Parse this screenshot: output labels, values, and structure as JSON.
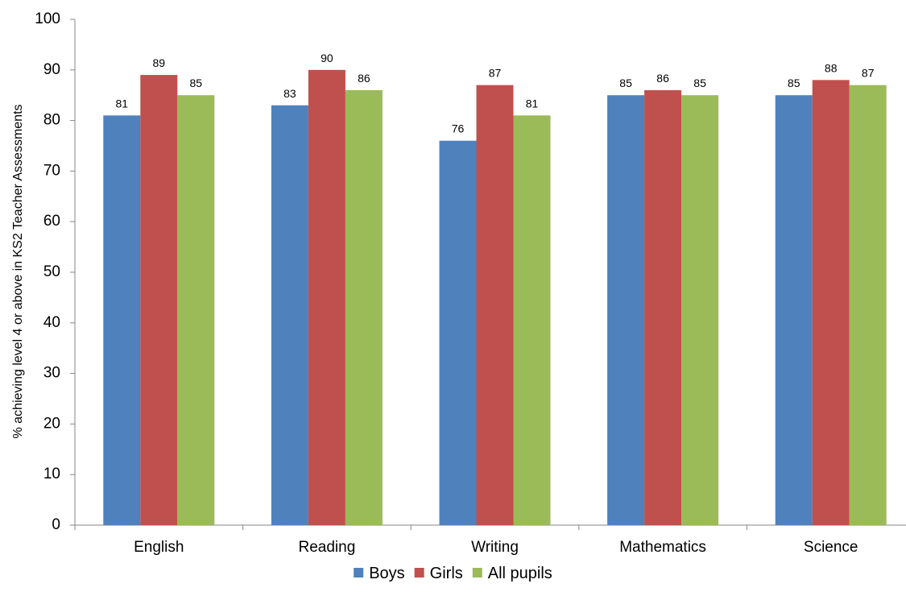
{
  "chart_data": {
    "type": "bar",
    "title": "",
    "xlabel": "",
    "ylabel": "% achieving level 4 or above in KS2 Teacher Assessments",
    "categories": [
      "English",
      "Reading",
      "Writing",
      "Mathematics",
      "Science"
    ],
    "series": [
      {
        "name": "Boys",
        "color": "#4f81bd",
        "values": [
          81,
          83,
          76,
          85,
          85
        ]
      },
      {
        "name": "Girls",
        "color": "#c0504d",
        "values": [
          89,
          90,
          87,
          86,
          88
        ]
      },
      {
        "name": "All pupils",
        "color": "#9bbb59",
        "values": [
          85,
          86,
          81,
          85,
          87
        ]
      }
    ],
    "ylim": [
      0,
      100
    ],
    "yticks": [
      0,
      10,
      20,
      30,
      40,
      50,
      60,
      70,
      80,
      90,
      100
    ],
    "grid": false,
    "data_labels": true,
    "legend_position": "bottom"
  }
}
